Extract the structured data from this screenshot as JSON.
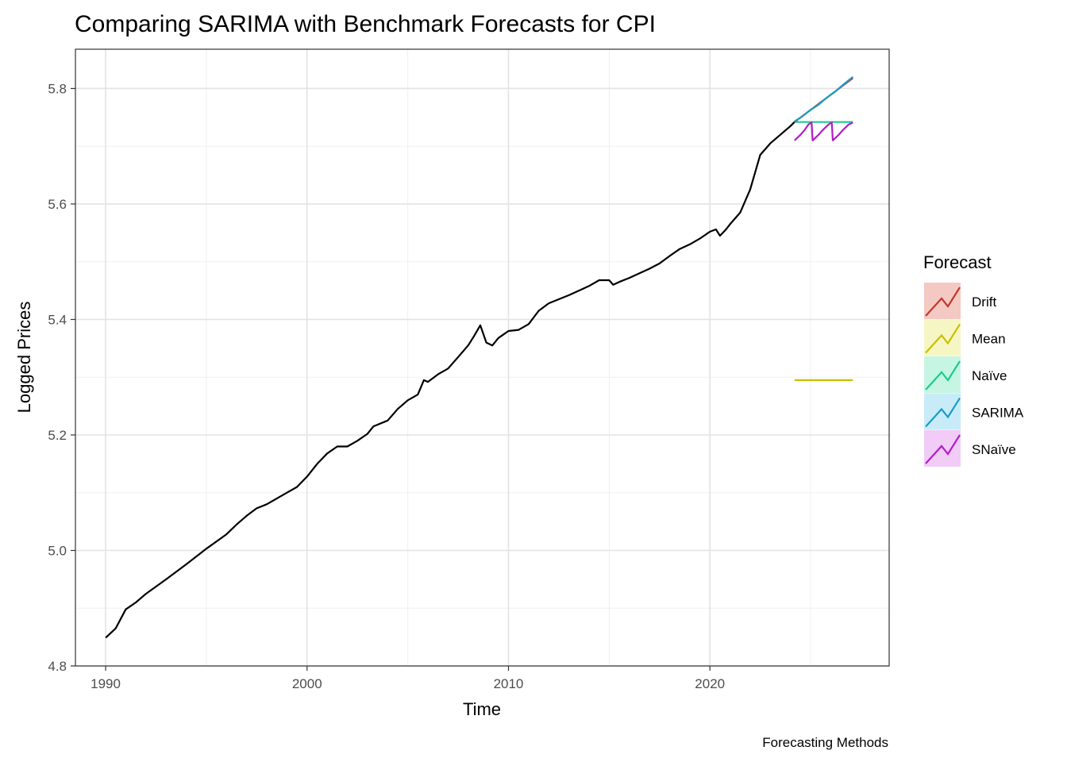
{
  "chart_data": {
    "type": "line",
    "title": "Comparing SARIMA with Benchmark Forecasts for CPI",
    "xlabel": "Time",
    "ylabel": "Logged Prices",
    "caption": "Forecasting Methods",
    "xlim": [
      1988.5,
      2028.9
    ],
    "ylim": [
      4.8,
      5.868
    ],
    "x_ticks": [
      1990,
      2000,
      2010,
      2020
    ],
    "x_tick_labels": [
      "1990",
      "2000",
      "2010",
      "2020"
    ],
    "y_ticks": [
      4.8,
      5.0,
      5.2,
      5.4,
      5.6,
      5.8
    ],
    "y_tick_labels": [
      "4.8",
      "5.0",
      "5.2",
      "5.4",
      "5.6",
      "5.8"
    ],
    "grid": true,
    "legend": {
      "title": "Forecast",
      "position": "right",
      "entries": [
        {
          "label": "Drift",
          "color": "#C0392B",
          "fill": "#F4C9C3"
        },
        {
          "label": "Mean",
          "color": "#C9C000",
          "fill": "#F6F6C4"
        },
        {
          "label": "Naïve",
          "color": "#1ECB8F",
          "fill": "#C6F5E3"
        },
        {
          "label": "SARIMA",
          "color": "#1A9CC7",
          "fill": "#C8EBF8"
        },
        {
          "label": "SNaïve",
          "color": "#B11EC8",
          "fill": "#F0CCF6"
        }
      ]
    },
    "history": {
      "color": "#000000",
      "points": [
        [
          1990.0,
          4.849
        ],
        [
          1990.5,
          4.865
        ],
        [
          1991.0,
          4.898
        ],
        [
          1991.5,
          4.91
        ],
        [
          1992.0,
          4.925
        ],
        [
          1993.0,
          4.95
        ],
        [
          1994.0,
          4.976
        ],
        [
          1995.0,
          5.003
        ],
        [
          1996.0,
          5.028
        ],
        [
          1996.5,
          5.045
        ],
        [
          1997.0,
          5.06
        ],
        [
          1997.5,
          5.073
        ],
        [
          1998.0,
          5.08
        ],
        [
          1999.0,
          5.1
        ],
        [
          1999.5,
          5.11
        ],
        [
          2000.0,
          5.128
        ],
        [
          2000.5,
          5.15
        ],
        [
          2001.0,
          5.168
        ],
        [
          2001.5,
          5.18
        ],
        [
          2002.0,
          5.18
        ],
        [
          2002.5,
          5.19
        ],
        [
          2003.0,
          5.202
        ],
        [
          2003.3,
          5.215
        ],
        [
          2004.0,
          5.225
        ],
        [
          2004.5,
          5.245
        ],
        [
          2005.0,
          5.26
        ],
        [
          2005.5,
          5.27
        ],
        [
          2005.8,
          5.295
        ],
        [
          2006.0,
          5.292
        ],
        [
          2006.5,
          5.305
        ],
        [
          2007.0,
          5.315
        ],
        [
          2007.5,
          5.335
        ],
        [
          2008.0,
          5.355
        ],
        [
          2008.3,
          5.372
        ],
        [
          2008.6,
          5.39
        ],
        [
          2008.9,
          5.36
        ],
        [
          2009.2,
          5.355
        ],
        [
          2009.5,
          5.368
        ],
        [
          2010.0,
          5.38
        ],
        [
          2010.5,
          5.382
        ],
        [
          2011.0,
          5.392
        ],
        [
          2011.5,
          5.415
        ],
        [
          2012.0,
          5.428
        ],
        [
          2012.5,
          5.435
        ],
        [
          2013.0,
          5.442
        ],
        [
          2013.5,
          5.45
        ],
        [
          2014.0,
          5.458
        ],
        [
          2014.5,
          5.468
        ],
        [
          2015.0,
          5.468
        ],
        [
          2015.2,
          5.46
        ],
        [
          2015.5,
          5.465
        ],
        [
          2016.0,
          5.472
        ],
        [
          2017.0,
          5.488
        ],
        [
          2017.5,
          5.497
        ],
        [
          2018.0,
          5.51
        ],
        [
          2018.5,
          5.522
        ],
        [
          2019.0,
          5.53
        ],
        [
          2019.5,
          5.54
        ],
        [
          2020.0,
          5.552
        ],
        [
          2020.3,
          5.556
        ],
        [
          2020.5,
          5.545
        ],
        [
          2020.8,
          5.556
        ],
        [
          2021.0,
          5.565
        ],
        [
          2021.5,
          5.585
        ],
        [
          2022.0,
          5.625
        ],
        [
          2022.5,
          5.685
        ],
        [
          2023.0,
          5.705
        ],
        [
          2023.5,
          5.72
        ],
        [
          2024.0,
          5.735
        ],
        [
          2024.2,
          5.742
        ]
      ]
    },
    "forecasts": [
      {
        "name": "Mean",
        "color": "#C9C000",
        "x": [
          2024.2,
          2027.1
        ],
        "y": [
          5.295,
          5.295
        ]
      },
      {
        "name": "Naïve",
        "color": "#1ECB8F",
        "x": [
          2024.2,
          2027.1
        ],
        "y": [
          5.742,
          5.742
        ]
      },
      {
        "name": "SNaïve",
        "color": "#B11EC8",
        "points": [
          [
            2024.2,
            5.71
          ],
          [
            2024.5,
            5.72
          ],
          [
            2024.7,
            5.728
          ],
          [
            2024.9,
            5.738
          ],
          [
            2025.05,
            5.741
          ],
          [
            2025.1,
            5.71
          ],
          [
            2025.4,
            5.72
          ],
          [
            2025.6,
            5.728
          ],
          [
            2025.9,
            5.738
          ],
          [
            2026.05,
            5.741
          ],
          [
            2026.1,
            5.71
          ],
          [
            2026.4,
            5.72
          ],
          [
            2026.6,
            5.728
          ],
          [
            2026.9,
            5.738
          ],
          [
            2027.1,
            5.741
          ]
        ]
      },
      {
        "name": "Drift",
        "color": "#C0392B",
        "x": [
          2024.2,
          2027.1
        ],
        "y": [
          5.742,
          5.818
        ]
      },
      {
        "name": "SARIMA",
        "color": "#1A9CC7",
        "points": [
          [
            2024.2,
            5.743
          ],
          [
            2024.6,
            5.752
          ],
          [
            2025.0,
            5.763
          ],
          [
            2025.4,
            5.772
          ],
          [
            2025.8,
            5.784
          ],
          [
            2026.2,
            5.794
          ],
          [
            2026.6,
            5.806
          ],
          [
            2027.1,
            5.82
          ]
        ]
      }
    ]
  }
}
